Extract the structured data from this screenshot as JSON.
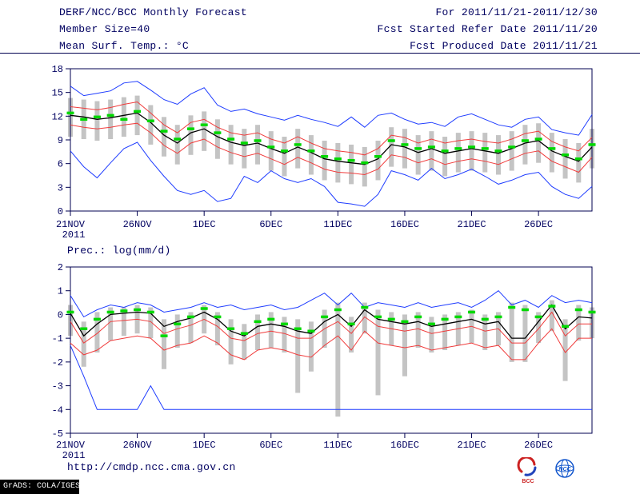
{
  "header": {
    "title": "DERF/NCC/BCC Monthly Forecast",
    "member_size": "Member Size=40",
    "for_range": "For 2011/11/21-2011/12/30",
    "fcst_refer": "Fcst Started Refer Date 2011/11/20",
    "fcst_produced": "Fcst Produced Date 2011/11/21"
  },
  "footer": {
    "url": "http://cmdp.ncc.cma.gov.cn",
    "grads_credit": "GrADS: COLA/IGES",
    "logos": [
      {
        "name": "BCC"
      },
      {
        "name": "NCC"
      }
    ]
  },
  "colors": {
    "text": "#000060",
    "axis": "#000050",
    "background": "#ffffff",
    "spread_bar": "#c4c4c4",
    "max_min_line": "#1e3cff",
    "quartile_line": "#f03c3c",
    "mean_line": "#000000",
    "dash_marker": "#00d800"
  },
  "chart_data": [
    {
      "type": "line",
      "title": "Mean Surf. Temp.: °C",
      "x_count": 40,
      "x_tick_indices": [
        0,
        5,
        10,
        15,
        20,
        25,
        30,
        35
      ],
      "x_tick_labels": [
        "21NOV",
        "26NOV",
        "1DEC",
        "6DEC",
        "11DEC",
        "16DEC",
        "21DEC",
        "26DEC"
      ],
      "year_label": "2011",
      "ylim": [
        0,
        18
      ],
      "yticks": [
        0,
        3,
        6,
        9,
        12,
        15,
        18
      ],
      "grid": false,
      "legend": false,
      "bars": {
        "color": "#c4c4c4",
        "low": [
          9.4,
          9.1,
          8.9,
          9.1,
          9.4,
          9.6,
          8.4,
          6.9,
          5.9,
          7.1,
          7.6,
          6.6,
          5.9,
          5.4,
          5.9,
          5.1,
          4.4,
          5.4,
          4.6,
          3.9,
          3.6,
          3.4,
          3.1,
          3.9,
          5.6,
          5.4,
          4.6,
          5.1,
          4.4,
          4.9,
          5.1,
          4.9,
          4.6,
          5.1,
          5.9,
          6.1,
          4.9,
          4.1,
          3.6,
          5.4
        ],
        "high": [
          14.3,
          14.1,
          13.9,
          14.1,
          14.4,
          14.6,
          13.4,
          11.9,
          10.9,
          12.1,
          12.6,
          11.6,
          10.9,
          10.4,
          10.9,
          10.1,
          9.4,
          10.4,
          9.6,
          8.9,
          8.6,
          8.4,
          8.1,
          8.9,
          10.6,
          10.4,
          9.6,
          10.1,
          9.4,
          9.9,
          10.1,
          9.9,
          9.6,
          10.1,
          10.9,
          11.1,
          9.9,
          9.1,
          8.6,
          10.4
        ]
      },
      "series": [
        {
          "name": "max-line",
          "color": "#1e3cff",
          "width": 1,
          "values": [
            15.8,
            14.6,
            14.9,
            15.2,
            16.2,
            16.4,
            15.3,
            14.1,
            13.5,
            14.8,
            15.6,
            13.4,
            12.6,
            12.9,
            12.3,
            11.9,
            11.5,
            12.1,
            11.6,
            11.2,
            10.7,
            11.9,
            10.6,
            12.1,
            12.4,
            11.6,
            11.0,
            11.2,
            10.7,
            11.9,
            12.3,
            11.6,
            10.9,
            10.6,
            11.6,
            11.9,
            10.3,
            9.9,
            9.6,
            12.2
          ]
        },
        {
          "name": "upper-red-line",
          "color": "#f03c3c",
          "width": 1,
          "values": [
            13.2,
            13.0,
            12.8,
            13.1,
            13.5,
            13.8,
            12.4,
            10.9,
            9.9,
            11.2,
            11.6,
            10.6,
            9.9,
            9.6,
            9.9,
            9.1,
            8.6,
            9.4,
            8.6,
            7.9,
            7.6,
            7.4,
            7.1,
            7.9,
            9.6,
            9.3,
            8.6,
            9.1,
            8.6,
            8.9,
            9.1,
            8.8,
            8.6,
            9.1,
            9.8,
            10.1,
            8.8,
            8.1,
            7.6,
            9.3
          ]
        },
        {
          "name": "mean-line",
          "color": "#000000",
          "width": 1.3,
          "values": [
            12.1,
            11.9,
            11.6,
            11.8,
            12.1,
            12.4,
            11.2,
            9.6,
            8.6,
            9.9,
            10.4,
            9.4,
            8.7,
            8.3,
            8.6,
            7.9,
            7.3,
            8.1,
            7.4,
            6.6,
            6.3,
            6.1,
            5.9,
            6.6,
            8.4,
            8.1,
            7.4,
            7.9,
            7.3,
            7.6,
            7.9,
            7.6,
            7.3,
            7.9,
            8.6,
            8.9,
            7.6,
            6.9,
            6.3,
            8.1
          ]
        },
        {
          "name": "lower-red-line",
          "color": "#f03c3c",
          "width": 1,
          "values": [
            10.9,
            10.6,
            10.4,
            10.6,
            10.9,
            11.1,
            9.9,
            8.3,
            7.3,
            8.6,
            9.1,
            8.1,
            7.4,
            6.9,
            7.3,
            6.6,
            5.9,
            6.8,
            6.1,
            5.3,
            4.9,
            4.8,
            4.6,
            5.3,
            7.1,
            6.8,
            6.1,
            6.6,
            5.9,
            6.3,
            6.6,
            6.3,
            5.9,
            6.6,
            7.3,
            7.6,
            6.3,
            5.6,
            4.9,
            6.8
          ]
        },
        {
          "name": "min-line",
          "color": "#1e3cff",
          "width": 1,
          "values": [
            7.6,
            5.6,
            4.2,
            6.1,
            7.9,
            8.7,
            6.4,
            4.4,
            2.6,
            2.1,
            2.6,
            1.2,
            1.6,
            4.4,
            3.6,
            5.1,
            4.1,
            3.6,
            4.1,
            3.1,
            1.1,
            0.9,
            0.6,
            2.1,
            5.1,
            4.6,
            3.9,
            5.4,
            4.1,
            4.6,
            5.3,
            4.4,
            3.4,
            3.9,
            4.6,
            4.9,
            3.1,
            2.1,
            1.6,
            3.1
          ]
        }
      ],
      "dash_series": {
        "name": "green-dash",
        "color": "#00d800",
        "values": [
          12.4,
          11.6,
          11.9,
          12.1,
          11.6,
          12.6,
          11.4,
          10.1,
          9.1,
          10.4,
          10.9,
          9.9,
          9.1,
          8.6,
          8.9,
          8.1,
          7.6,
          8.4,
          7.6,
          6.9,
          6.6,
          6.4,
          6.1,
          6.9,
          8.9,
          8.4,
          7.9,
          8.1,
          7.6,
          7.9,
          8.1,
          7.9,
          7.6,
          8.1,
          8.9,
          9.1,
          7.9,
          7.1,
          6.6,
          8.4
        ]
      }
    },
    {
      "type": "line",
      "title": "Prec.: log(mm/d)",
      "x_count": 40,
      "x_tick_indices": [
        0,
        5,
        10,
        15,
        20,
        25,
        30,
        35
      ],
      "x_tick_labels": [
        "21NOV",
        "26NOV",
        "1DEC",
        "6DEC",
        "11DEC",
        "16DEC",
        "21DEC",
        "26DEC"
      ],
      "year_label": "2011",
      "ylim": [
        -5,
        2
      ],
      "yticks": [
        2,
        1,
        0,
        -1,
        -2,
        -3,
        -4,
        -5
      ],
      "grid": false,
      "legend": false,
      "bars": {
        "color": "#c4c4c4",
        "low": [
          -0.9,
          -2.2,
          -1.6,
          -1.1,
          -0.9,
          -0.8,
          -1.0,
          -2.3,
          -1.4,
          -1.2,
          -0.8,
          -1.3,
          -2.1,
          -1.9,
          -1.5,
          -1.4,
          -1.6,
          -3.3,
          -2.4,
          -1.4,
          -4.3,
          -1.6,
          -0.8,
          -3.4,
          -1.3,
          -2.6,
          -1.4,
          -1.6,
          -1.5,
          -1.3,
          -1.2,
          -1.5,
          -1.3,
          -2.0,
          -2.0,
          -1.2,
          -0.7,
          -2.8,
          -1.1,
          -1.0
        ],
        "high": [
          0.4,
          -0.3,
          0.1,
          0.3,
          0.3,
          0.4,
          0.3,
          -0.2,
          0.0,
          0.1,
          0.4,
          0.1,
          -0.2,
          -0.4,
          0.0,
          0.1,
          -0.1,
          -0.2,
          -0.3,
          0.2,
          0.5,
          -0.1,
          0.5,
          0.2,
          0.1,
          0.0,
          0.1,
          -0.1,
          0.0,
          0.1,
          0.2,
          0.0,
          0.1,
          0.5,
          0.4,
          0.1,
          0.6,
          -0.2,
          0.4,
          0.3
        ]
      },
      "series": [
        {
          "name": "max-line",
          "color": "#1e3cff",
          "width": 1,
          "values": [
            0.8,
            -0.1,
            0.2,
            0.4,
            0.3,
            0.5,
            0.4,
            0.1,
            0.2,
            0.3,
            0.5,
            0.3,
            0.4,
            0.2,
            0.3,
            0.4,
            0.2,
            0.3,
            0.6,
            0.9,
            0.4,
            0.9,
            0.3,
            0.5,
            0.4,
            0.3,
            0.5,
            0.3,
            0.4,
            0.5,
            0.3,
            0.6,
            1.0,
            0.4,
            0.6,
            0.3,
            0.8,
            0.5,
            0.6,
            0.5
          ]
        },
        {
          "name": "upper-red-line",
          "color": "#f03c3c",
          "width": 1,
          "values": [
            -0.3,
            -1.2,
            -0.8,
            -0.3,
            -0.25,
            -0.2,
            -0.3,
            -0.8,
            -0.6,
            -0.45,
            -0.2,
            -0.5,
            -1.0,
            -1.1,
            -0.8,
            -0.7,
            -0.8,
            -1.0,
            -1.0,
            -0.6,
            -0.3,
            -0.8,
            -0.1,
            -0.5,
            -0.6,
            -0.7,
            -0.6,
            -0.8,
            -0.7,
            -0.6,
            -0.5,
            -0.7,
            -0.6,
            -1.2,
            -1.2,
            -0.6,
            0.1,
            -0.9,
            -0.4,
            -0.4
          ]
        },
        {
          "name": "mean-line",
          "color": "#000000",
          "width": 1.3,
          "values": [
            0.05,
            -0.9,
            -0.4,
            0.0,
            0.05,
            0.1,
            0.05,
            -0.5,
            -0.3,
            -0.15,
            0.1,
            -0.2,
            -0.7,
            -0.9,
            -0.5,
            -0.4,
            -0.5,
            -0.7,
            -0.8,
            -0.3,
            0.0,
            -0.5,
            0.2,
            -0.2,
            -0.3,
            -0.4,
            -0.3,
            -0.5,
            -0.4,
            -0.3,
            -0.2,
            -0.4,
            -0.3,
            -1.0,
            -1.0,
            -0.3,
            0.4,
            -0.6,
            -0.1,
            -0.15
          ]
        },
        {
          "name": "lower-red-line",
          "color": "#f03c3c",
          "width": 1,
          "values": [
            -1.2,
            -1.7,
            -1.5,
            -1.1,
            -1.0,
            -0.9,
            -1.0,
            -1.5,
            -1.3,
            -1.2,
            -0.9,
            -1.2,
            -1.7,
            -1.9,
            -1.5,
            -1.4,
            -1.5,
            -1.7,
            -1.8,
            -1.3,
            -0.9,
            -1.5,
            -0.7,
            -1.2,
            -1.3,
            -1.4,
            -1.3,
            -1.5,
            -1.4,
            -1.3,
            -1.2,
            -1.4,
            -1.3,
            -1.9,
            -1.9,
            -1.2,
            -0.6,
            -1.6,
            -1.0,
            -1.0
          ]
        },
        {
          "name": "min-line",
          "color": "#1e3cff",
          "width": 1,
          "values": [
            -1.3,
            -2.6,
            -4.0,
            -4.0,
            -4.0,
            -4.0,
            -3.0,
            -4.0,
            -4.0,
            -4.0,
            -4.0,
            -4.0,
            -4.0,
            -4.0,
            -4.0,
            -4.0,
            -4.0,
            -4.0,
            -4.0,
            -4.0,
            -4.0,
            -4.0,
            -4.0,
            -4.0,
            -4.0,
            -4.0,
            -4.0,
            -4.0,
            -4.0,
            -4.0,
            -4.0,
            -4.0,
            -4.0,
            -4.0,
            -4.0,
            -4.0,
            -4.0,
            -4.0,
            -4.0,
            -4.0
          ]
        }
      ],
      "dash_series": {
        "name": "green-dash",
        "color": "#00d800",
        "values": [
          0.1,
          -0.6,
          -0.2,
          0.1,
          0.15,
          0.2,
          0.1,
          -0.9,
          -0.4,
          -0.1,
          0.25,
          -0.1,
          -0.6,
          -0.8,
          -0.3,
          -0.2,
          -0.4,
          -0.6,
          -0.7,
          -0.1,
          0.2,
          -0.4,
          0.3,
          -0.1,
          -0.2,
          -0.3,
          -0.1,
          -0.4,
          -0.2,
          -0.1,
          0.1,
          -0.2,
          -0.1,
          0.3,
          0.2,
          -0.1,
          0.35,
          -0.5,
          0.2,
          0.1
        ]
      }
    }
  ]
}
